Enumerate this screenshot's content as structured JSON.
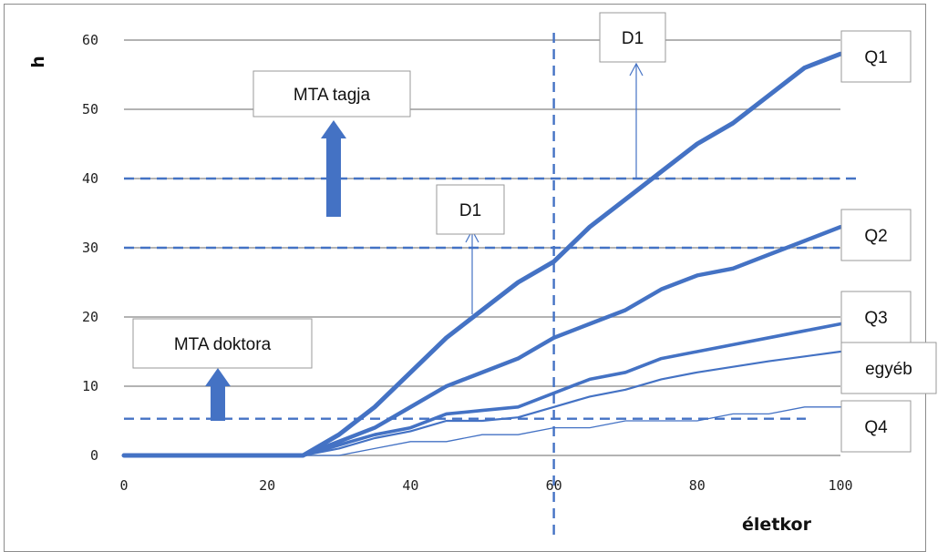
{
  "chart_data": {
    "type": "line",
    "xlabel": "életkor",
    "ylabel": "h",
    "xlim": [
      0,
      100
    ],
    "ylim": [
      0,
      60
    ],
    "x_ticks": [
      "0",
      "20",
      "40",
      "60",
      "80",
      "100"
    ],
    "y_ticks": [
      "0",
      "10",
      "20",
      "30",
      "40",
      "50",
      "60"
    ],
    "grid": "horizontal",
    "color": "#4472c4",
    "series": [
      {
        "name": "Q1",
        "x": [
          0,
          25,
          30,
          35,
          40,
          45,
          50,
          55,
          60,
          65,
          70,
          75,
          80,
          85,
          90,
          95,
          100
        ],
        "y": [
          0,
          0,
          3,
          7,
          12,
          17,
          21,
          25,
          28,
          33,
          37,
          41,
          45,
          48,
          52,
          56,
          58
        ]
      },
      {
        "name": "Q2",
        "x": [
          0,
          25,
          30,
          35,
          40,
          45,
          50,
          55,
          60,
          65,
          70,
          75,
          80,
          85,
          90,
          95,
          100
        ],
        "y": [
          0,
          0,
          2,
          4,
          7,
          10,
          12,
          14,
          17,
          19,
          21,
          24,
          26,
          27,
          29,
          31,
          33
        ]
      },
      {
        "name": "Q3",
        "x": [
          0,
          25,
          30,
          35,
          40,
          45,
          50,
          55,
          60,
          65,
          70,
          75,
          80,
          85,
          90,
          95,
          100
        ],
        "y": [
          0,
          0,
          1.5,
          3,
          4,
          6,
          6.5,
          7,
          9,
          11,
          12,
          14,
          15,
          16,
          17,
          18,
          19
        ]
      },
      {
        "name": "egyéb",
        "x": [
          0,
          25,
          30,
          35,
          40,
          45,
          50,
          55,
          60,
          65,
          70,
          75,
          80,
          85,
          90,
          95,
          100
        ],
        "y": [
          0,
          0,
          1,
          2.5,
          3.5,
          5,
          5,
          5.5,
          7,
          8.5,
          9.5,
          11,
          12,
          12.8,
          13.6,
          14.3,
          15
        ]
      },
      {
        "name": "Q4",
        "x": [
          0,
          25,
          30,
          35,
          40,
          45,
          50,
          55,
          60,
          65,
          70,
          75,
          80,
          85,
          90,
          95,
          100
        ],
        "y": [
          0,
          0,
          0,
          1,
          2,
          2,
          3,
          3,
          4,
          4,
          5,
          5,
          5,
          6,
          6,
          7,
          7
        ]
      }
    ],
    "reference_lines": [
      {
        "axis": "y",
        "value": 40,
        "style": "dashed"
      },
      {
        "axis": "y",
        "value": 30,
        "style": "dashed"
      },
      {
        "axis": "y",
        "value": 5.3,
        "style": "dashed"
      },
      {
        "axis": "x",
        "value": 60,
        "style": "dashed"
      }
    ],
    "annotations": [
      {
        "text": "MTA tagja",
        "kind": "label-box"
      },
      {
        "text": "MTA doktora",
        "kind": "label-box"
      },
      {
        "text": "D1",
        "kind": "label-box",
        "at": "upper"
      },
      {
        "text": "D1",
        "kind": "label-box",
        "at": "lower"
      }
    ]
  }
}
